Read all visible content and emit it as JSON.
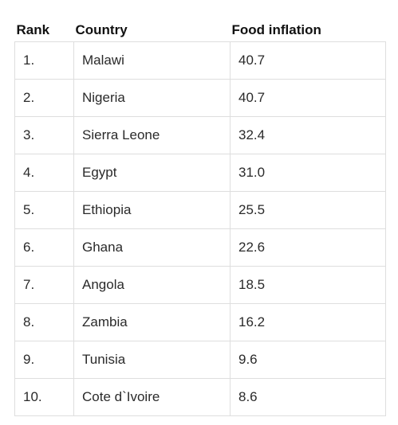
{
  "chart_data": {
    "type": "table",
    "columns": [
      "Rank",
      "Country",
      "Food inflation"
    ],
    "rows": [
      [
        "1.",
        "Malawi",
        "40.7"
      ],
      [
        "2.",
        "Nigeria",
        "40.7"
      ],
      [
        "3.",
        "Sierra Leone",
        "32.4"
      ],
      [
        "4.",
        "Egypt",
        "31.0"
      ],
      [
        "5.",
        "Ethiopia",
        "25.5"
      ],
      [
        "6.",
        "Ghana",
        "22.6"
      ],
      [
        "7.",
        "Angola",
        "18.5"
      ],
      [
        "8.",
        "Zambia",
        "16.2"
      ],
      [
        "9.",
        "Tunisia",
        "9.6"
      ],
      [
        "10.",
        "Cote d`Ivoire",
        "8.6"
      ]
    ]
  }
}
